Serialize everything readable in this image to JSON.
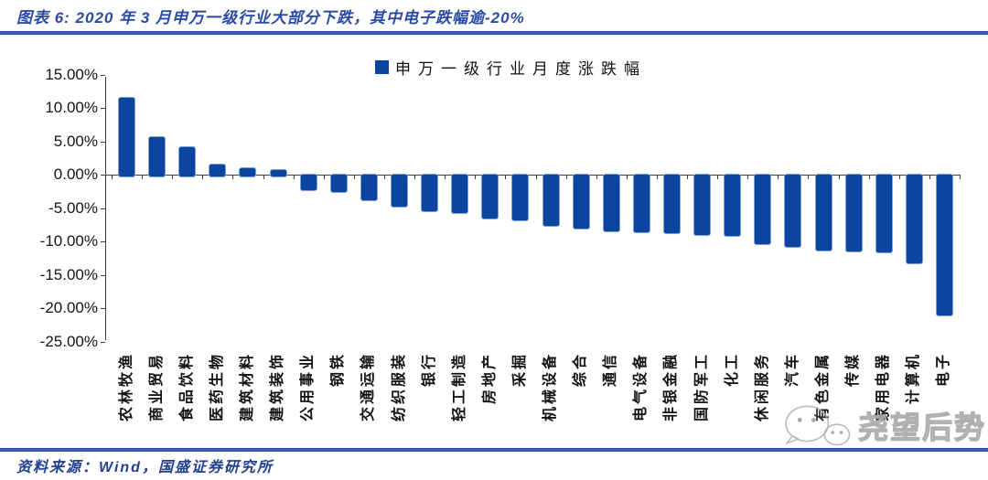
{
  "header": {
    "title": "图表 6:  2020 年 3 月申万一级行业大部分下跌，其中电子跌幅逾-20%"
  },
  "legend": {
    "label": "申万一级行业月度涨跌幅"
  },
  "footer": {
    "source_label": "资料来源：Wind，国盛证券研究所"
  },
  "watermark": {
    "icon": "wechat-icon",
    "text": "尧望后势"
  },
  "colors": {
    "bar_fill": "#0C45A0",
    "bar_edge": "#7D9FD6",
    "navy_rule": "#16368E",
    "title_blue": "#2B4AA6",
    "axis_gray": "#3f3f3f",
    "watermark_gray": "#bdbdbd"
  },
  "chart_data": {
    "type": "bar",
    "title": "申万一级行业月度涨跌幅",
    "xlabel": "",
    "ylabel": "",
    "ylim": [
      -25,
      15
    ],
    "yticks": [
      15,
      10,
      5,
      0,
      -5,
      -10,
      -15,
      -20,
      -25
    ],
    "ytick_format": "0.00%",
    "grid": false,
    "legend_position": "top-center",
    "categories": [
      "农林牧渔",
      "商业贸易",
      "食品饮料",
      "医药生物",
      "建筑材料",
      "建筑装饰",
      "公用事业",
      "钢铁",
      "交通运输",
      "纺织服装",
      "银行",
      "轻工制造",
      "房地产",
      "采掘",
      "机械设备",
      "综合",
      "通信",
      "电气设备",
      "非银金融",
      "国防军工",
      "化工",
      "休闲服务",
      "汽车",
      "有色金属",
      "传媒",
      "家用电器",
      "计算机",
      "电子"
    ],
    "values": [
      11.6,
      5.8,
      4.3,
      1.7,
      1.1,
      0.8,
      -2.2,
      -2.5,
      -3.7,
      -4.7,
      -5.4,
      -5.6,
      -6.5,
      -6.7,
      -7.5,
      -7.9,
      -8.4,
      -8.5,
      -8.6,
      -8.9,
      -9.0,
      -10.3,
      -10.7,
      -11.3,
      -11.4,
      -11.5,
      -13.2,
      -21.0
    ]
  }
}
